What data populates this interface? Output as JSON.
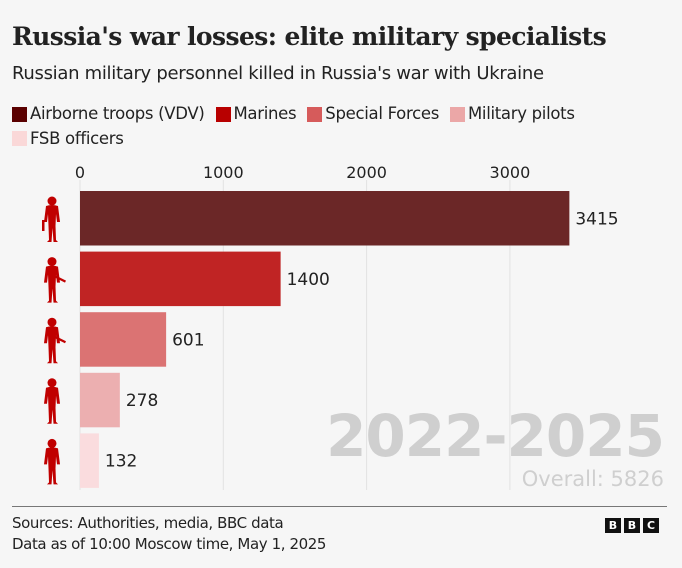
{
  "title": "Russia's war losses: elite military specialists",
  "subtitle": "Russian military personnel killed in Russia's war with Ukraine",
  "legend": [
    {
      "label": "Airborne troops (VDV)",
      "color": "#5a0000"
    },
    {
      "label": "Marines",
      "color": "#b80000"
    },
    {
      "label": "Special Forces",
      "color": "#d65b5b"
    },
    {
      "label": "Military pilots",
      "color": "#eba7a7"
    },
    {
      "label": "FSB officers",
      "color": "#fad8d8"
    }
  ],
  "chart_data": {
    "type": "bar",
    "orientation": "horizontal",
    "title": "Russia's war losses: elite military specialists",
    "subtitle": "Russian military personnel killed in Russia's war with Ukraine",
    "categories": [
      "Airborne troops (VDV)",
      "Marines",
      "Special Forces",
      "Military pilots",
      "FSB officers"
    ],
    "values": [
      3415,
      1400,
      601,
      278,
      132
    ],
    "colors": [
      "#6b2727",
      "#c02424",
      "#db7373",
      "#ecafb0",
      "#fadcde"
    ],
    "xlim": [
      0,
      4000
    ],
    "xticks": [
      0,
      1000,
      2000,
      3000
    ],
    "xtick_labels": [
      "0",
      "1000",
      "2000",
      "3000"
    ],
    "grid": true,
    "legend_position": "top",
    "annotation": {
      "period": "2022-2025",
      "overall": "Overall: 5826"
    }
  },
  "footer": {
    "sources": "Sources: Authorities, media, BBC data",
    "date": "Data as of 10:00 Moscow time, May 1, 2025"
  },
  "logo": {
    "letters": [
      "B",
      "B",
      "C"
    ]
  },
  "icon_color": "#c00000"
}
